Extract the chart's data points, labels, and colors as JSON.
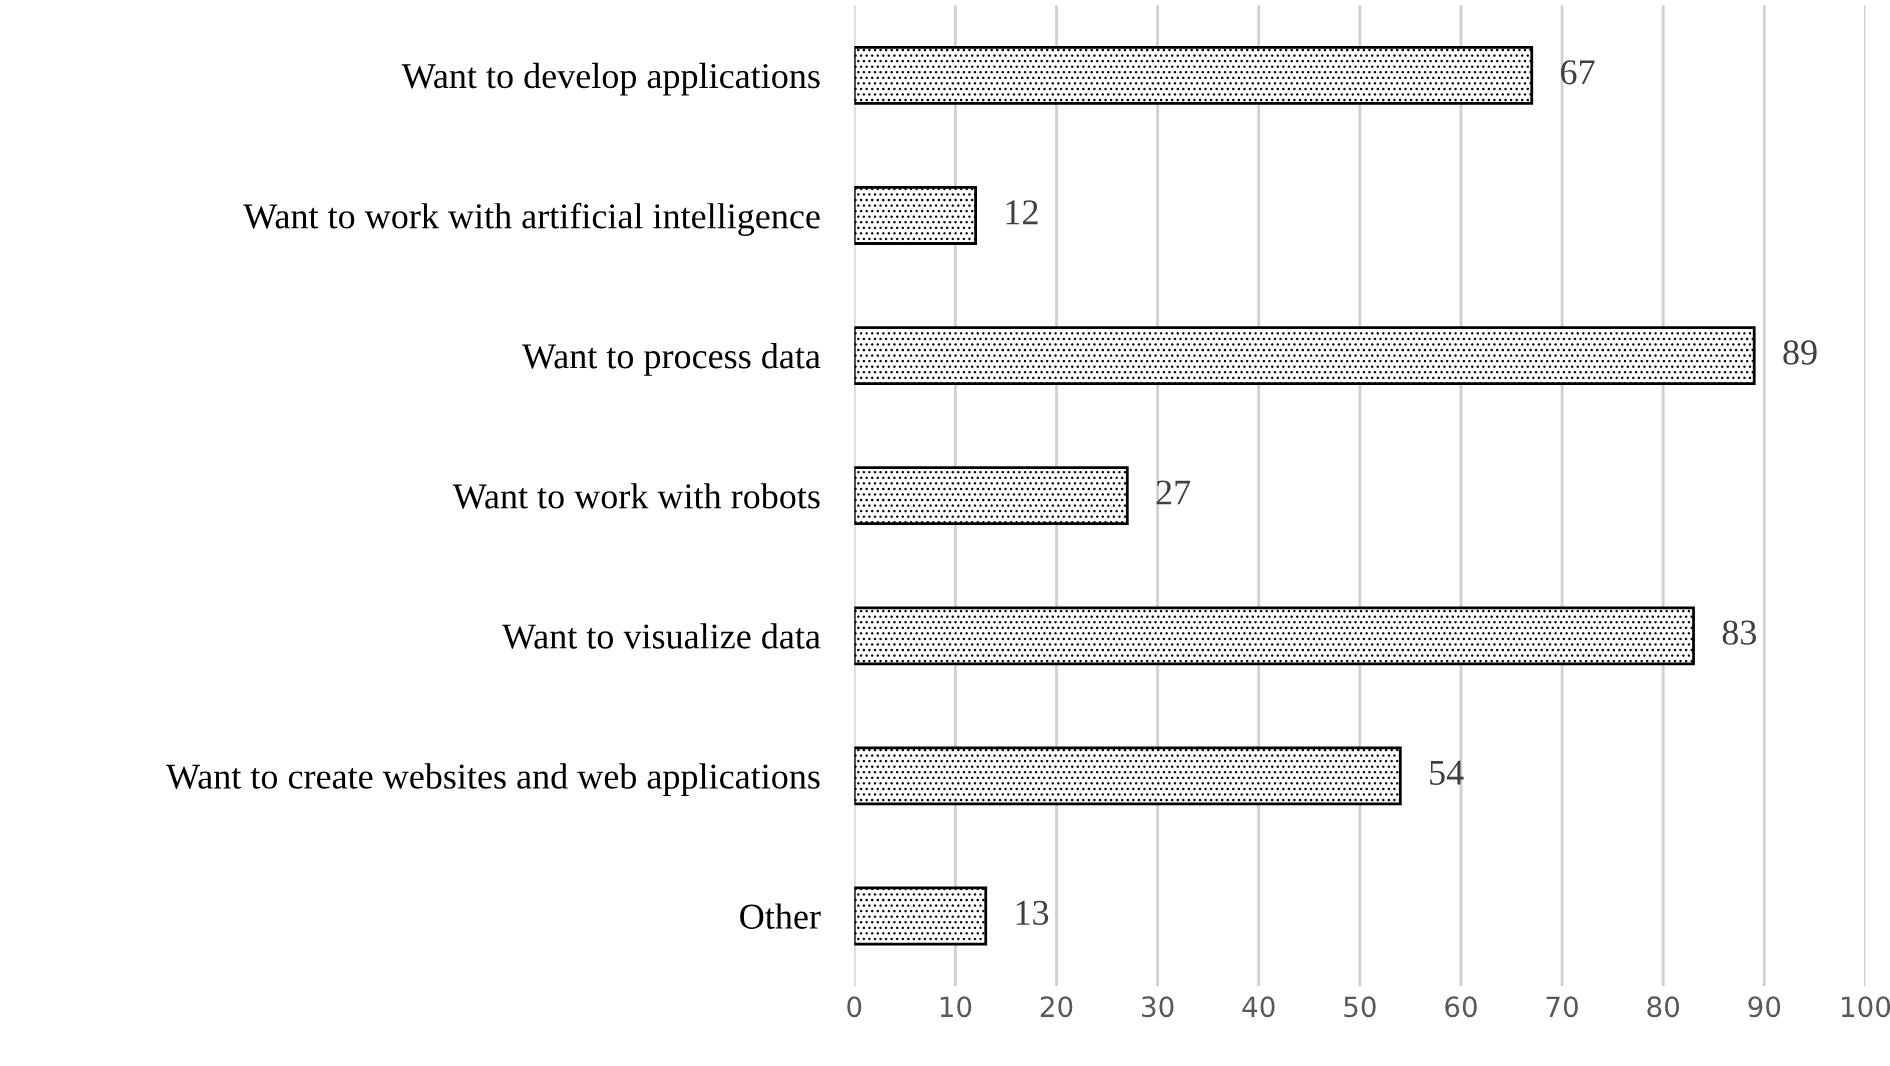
{
  "chart_data": {
    "type": "bar",
    "orientation": "horizontal",
    "categories": [
      "Want to develop applications",
      "Want to work with artificial intelligence",
      "Want to process data",
      "Want to work with robots",
      "Want to visualize data",
      "Want to create websites and web applications",
      "Other"
    ],
    "values": [
      67,
      12,
      89,
      27,
      83,
      54,
      13
    ],
    "color": "#000000",
    "xlim": [
      0,
      100
    ],
    "xticks": [
      0,
      10,
      20,
      30,
      40,
      50,
      60,
      70,
      80,
      90,
      100
    ],
    "grid": "x",
    "data_labels": true
  }
}
